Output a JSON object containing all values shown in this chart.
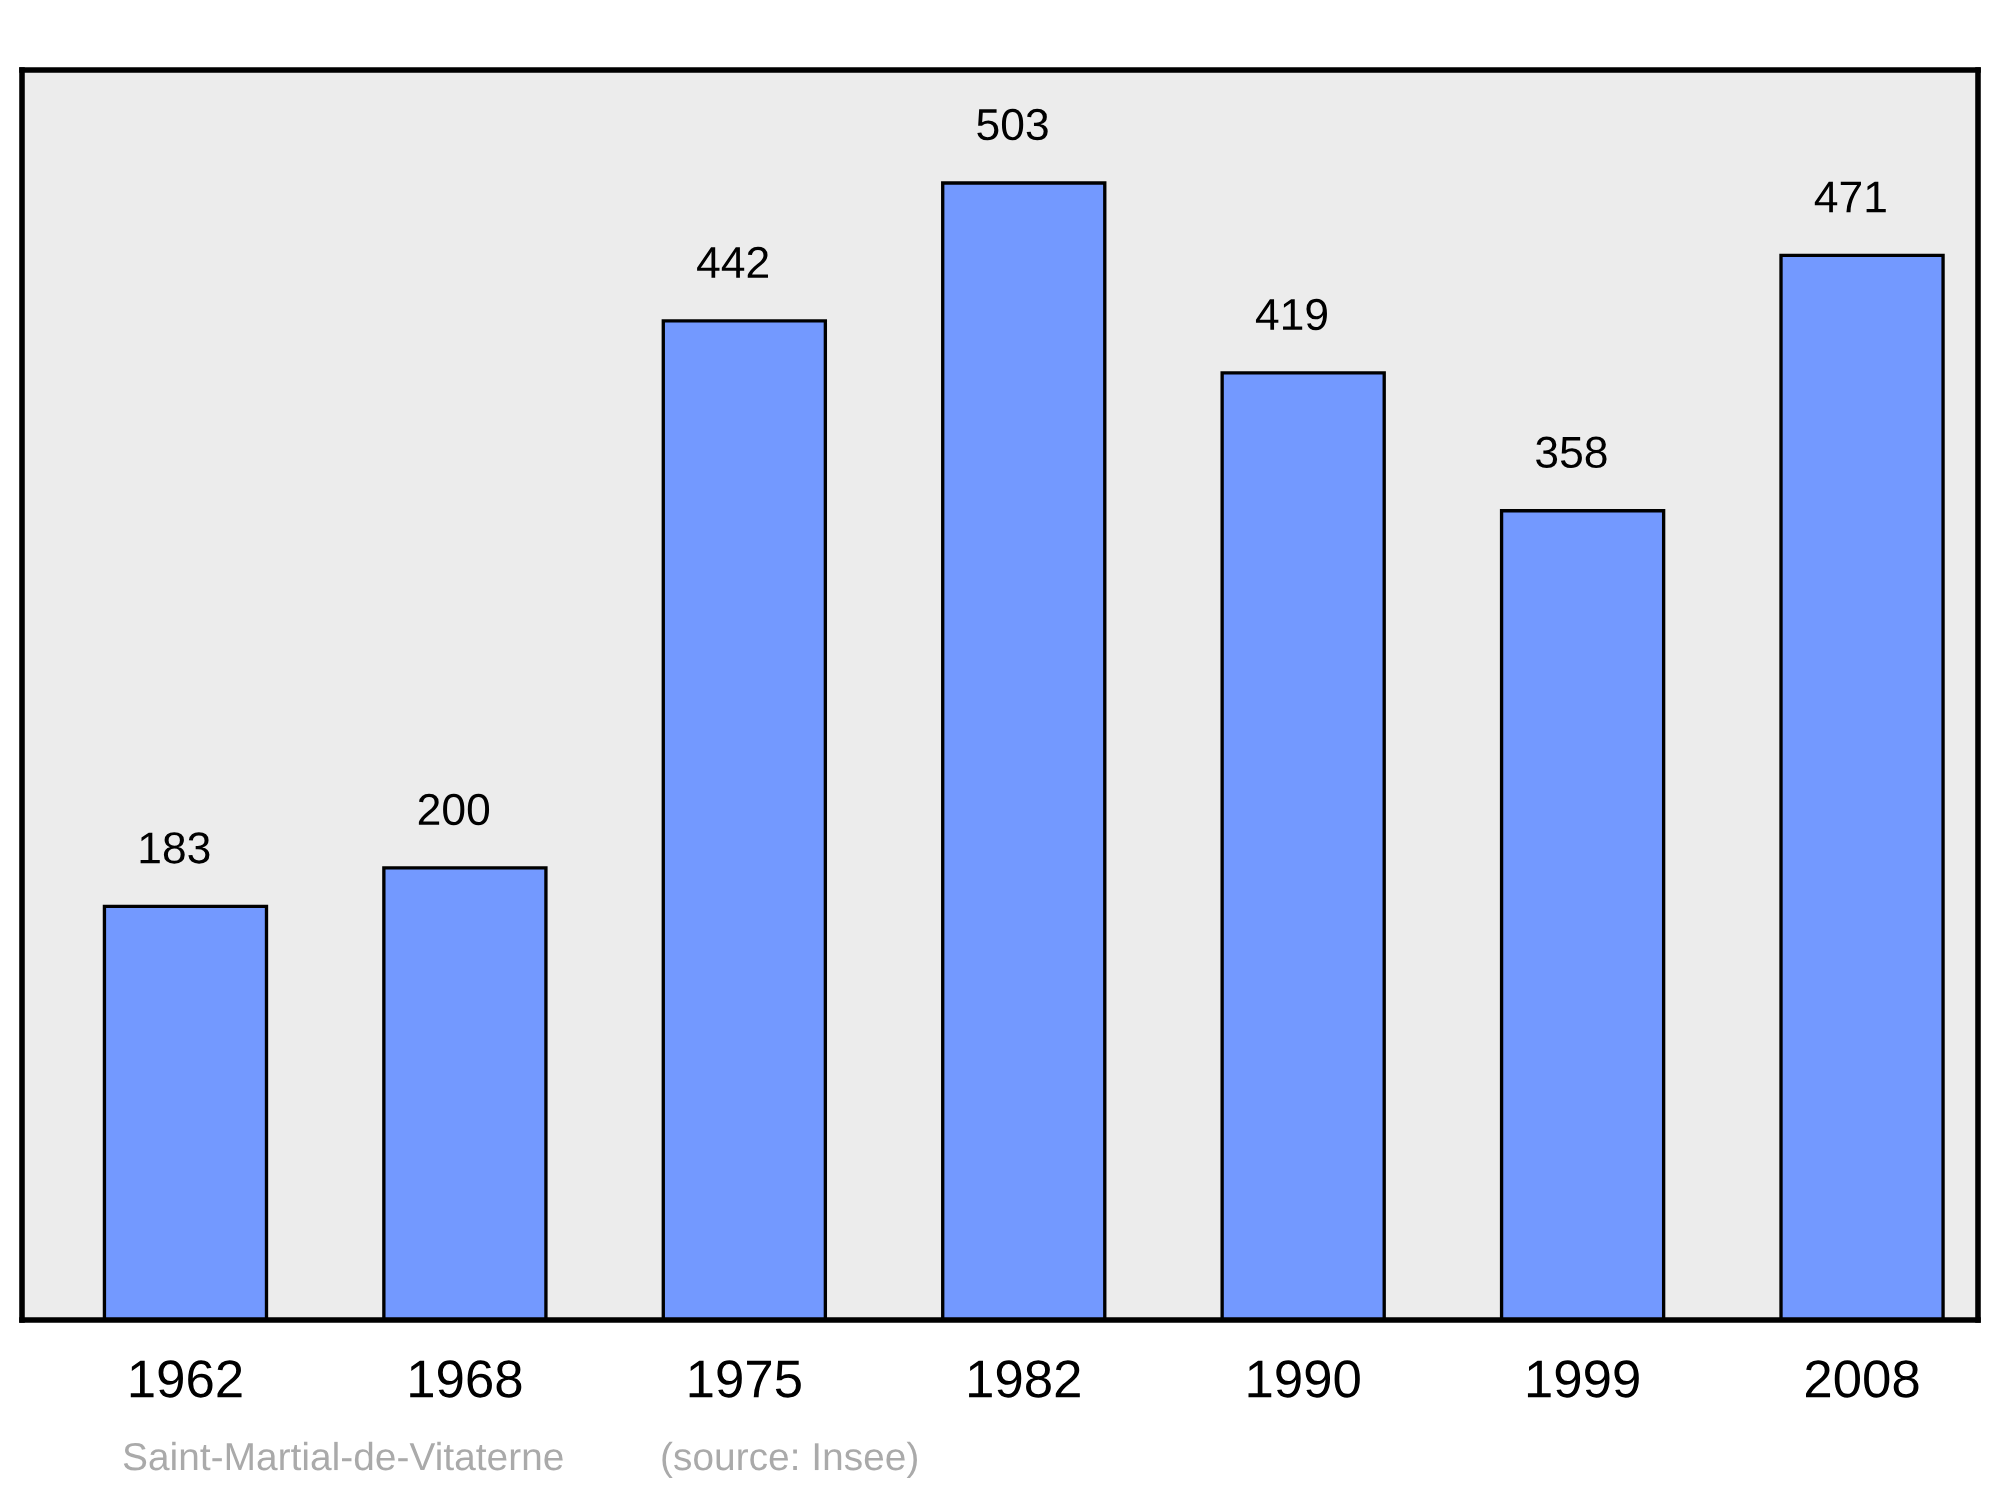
{
  "chart_data": {
    "type": "bar",
    "categories": [
      "1962",
      "1968",
      "1975",
      "1982",
      "1990",
      "1999",
      "2008"
    ],
    "values": [
      183,
      200,
      442,
      503,
      419,
      358,
      471
    ],
    "color": "#7399ff",
    "ylim": [
      0,
      553
    ],
    "data_labels": true,
    "tick_labels": "x",
    "grid": false,
    "legend": false,
    "annotations": [
      "Saint-Martial-de-Vitaterne",
      "(source: Insee)"
    ]
  }
}
